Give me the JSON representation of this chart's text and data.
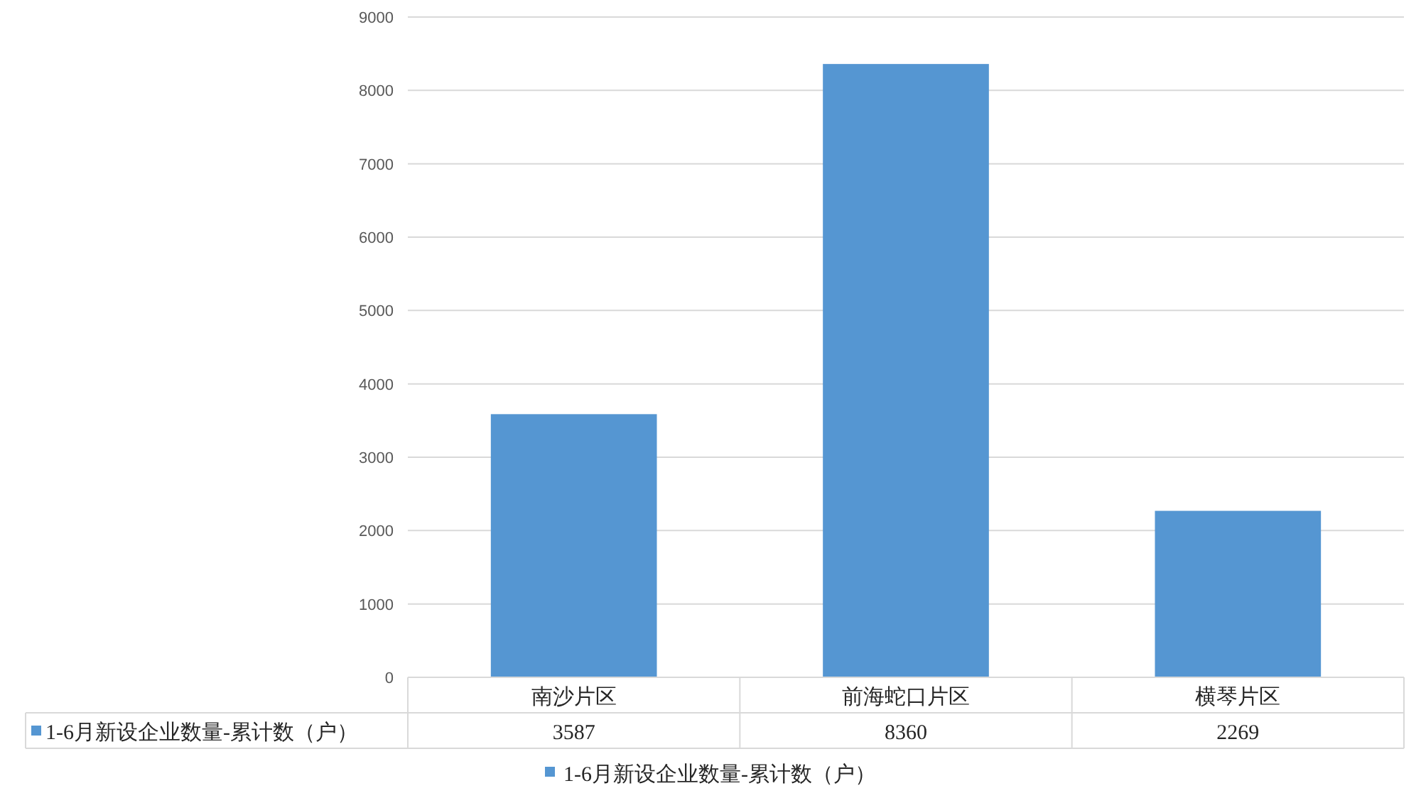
{
  "chart_data": {
    "type": "bar",
    "categories": [
      "南沙片区",
      "前海蛇口片区",
      "横琴片区"
    ],
    "series": [
      {
        "name": "1-6月新设企业数量-累计数（户）",
        "color": "#5596d2",
        "values": [
          3587,
          8360,
          2269
        ]
      }
    ],
    "ylim": [
      0,
      9000
    ],
    "yticks": [
      0,
      1000,
      2000,
      3000,
      4000,
      5000,
      6000,
      7000,
      8000,
      9000
    ],
    "grid": "y",
    "legend": "bottom",
    "data_labels": true
  }
}
